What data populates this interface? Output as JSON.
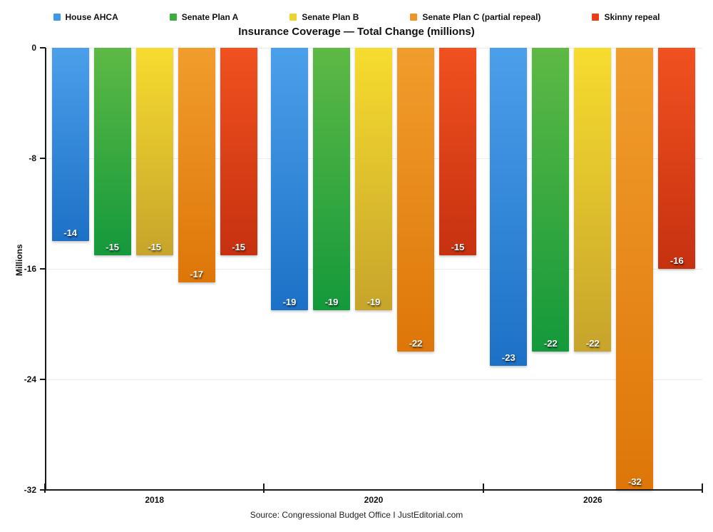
{
  "title": "Insurance Coverage — Total Change (millions)",
  "source": "Source: Congressional Budget Office I JustEditorial.com",
  "chart_data": {
    "type": "bar",
    "categories": [
      "2018",
      "2020",
      "2026"
    ],
    "series": [
      {
        "name": "House AHCA",
        "values": [
          -14,
          -19,
          -23
        ],
        "color_top": "#4C9FEA",
        "color_bottom": "#1C71C7",
        "legend_color": "#3E97EE"
      },
      {
        "name": "Senate Plan A",
        "values": [
          -15,
          -19,
          -22
        ],
        "color_top": "#5EB945",
        "color_bottom": "#14993B",
        "legend_color": "#3EAC3E"
      },
      {
        "name": "Senate Plan B",
        "values": [
          -15,
          -19,
          -22
        ],
        "color_top": "#F7DC2F",
        "color_bottom": "#C7A42B",
        "legend_color": "#EFD42D"
      },
      {
        "name": "Senate Plan C (partial repeal)",
        "values": [
          -17,
          -22,
          -32
        ],
        "color_top": "#F19D2D",
        "color_bottom": "#DE7609",
        "legend_color": "#EE9526"
      },
      {
        "name": "Skinny repeal",
        "values": [
          -15,
          -15,
          -16
        ],
        "color_top": "#F1511F",
        "color_bottom": "#C63110",
        "legend_color": "#E93E16"
      }
    ],
    "ylabel": "Millions",
    "xlabel": "",
    "yticks": [
      0,
      -8,
      -16,
      -24,
      -32
    ],
    "ylim": [
      -32,
      0
    ],
    "grid": true,
    "legend_position": "top"
  }
}
